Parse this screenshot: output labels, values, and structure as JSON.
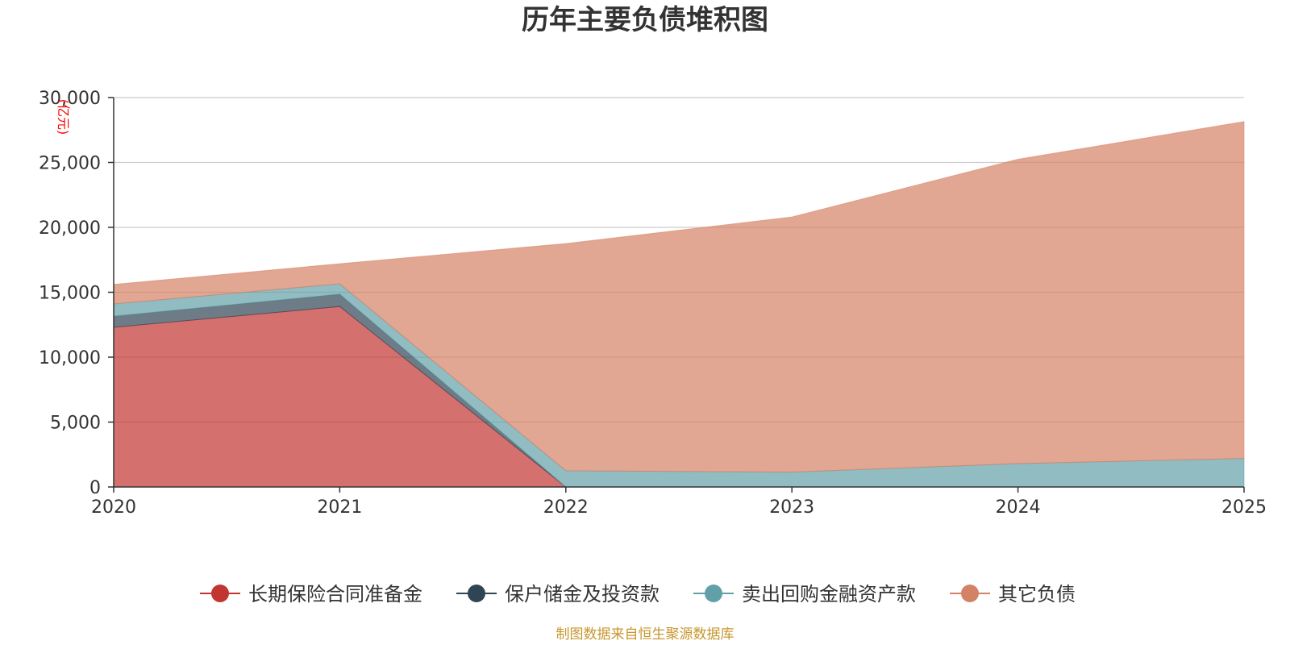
{
  "chart_data": {
    "type": "area",
    "stacked": true,
    "title": "历年主要负债堆积图",
    "unit_label": "(亿元)",
    "x": [
      "2020",
      "2021",
      "2022",
      "2023",
      "2024",
      "2025"
    ],
    "ylim": [
      0,
      30000
    ],
    "yticks": [
      0,
      5000,
      10000,
      15000,
      20000,
      25000,
      30000
    ],
    "ytick_labels": [
      "0",
      "5,000",
      "10,000",
      "15,000",
      "20,000",
      "25,000",
      "30,000"
    ],
    "series": [
      {
        "name": "长期保险合同准备金",
        "color": "#c23531",
        "values": [
          12300,
          13900,
          0,
          0,
          0,
          0
        ]
      },
      {
        "name": "保户储金及投资款",
        "color": "#2f4554",
        "values": [
          850,
          950,
          0,
          0,
          0,
          0
        ]
      },
      {
        "name": "卖出回购金融资产款",
        "color": "#61a0a8",
        "values": [
          950,
          800,
          1250,
          1150,
          1800,
          2200
        ]
      },
      {
        "name": "其它负债",
        "color": "#d48265",
        "values": [
          1500,
          1550,
          17500,
          19650,
          23450,
          25950
        ]
      }
    ],
    "legend_position": "bottom-center",
    "source": "制图数据来自恒生聚源数据库"
  }
}
